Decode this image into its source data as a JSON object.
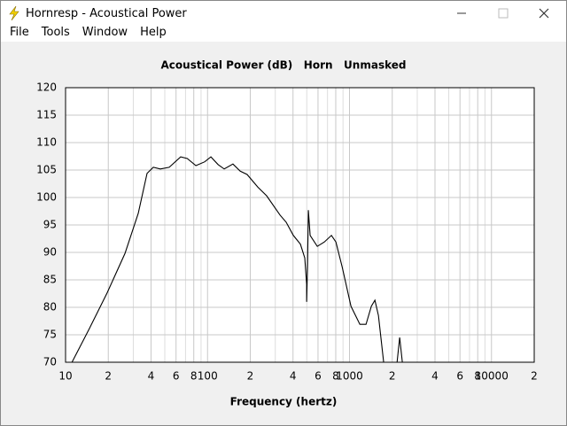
{
  "window": {
    "title": "Hornresp - Acoustical Power",
    "menu": [
      "File",
      "Tools",
      "Window",
      "Help"
    ]
  },
  "chart_data": {
    "type": "line",
    "title": "Acoustical Power (dB)   Horn   Unmasked",
    "xlabel": "Frequency (hertz)",
    "xlog": true,
    "grid": true,
    "xlim": [
      10,
      20000
    ],
    "ylim": [
      70,
      120
    ],
    "xticks": [
      10,
      {
        "value": 20,
        "label": "2"
      },
      {
        "value": 40,
        "label": "4"
      },
      {
        "value": 60,
        "label": "6"
      },
      {
        "value": 80,
        "label": "8"
      },
      100,
      {
        "value": 200,
        "label": "2"
      },
      {
        "value": 400,
        "label": "4"
      },
      {
        "value": 600,
        "label": "6"
      },
      {
        "value": 800,
        "label": "8"
      },
      1000,
      {
        "value": 2000,
        "label": "2"
      },
      {
        "value": 4000,
        "label": "4"
      },
      {
        "value": 6000,
        "label": "6"
      },
      {
        "value": 8000,
        "label": "8"
      },
      10000,
      {
        "value": 20000,
        "label": "2"
      }
    ],
    "xminor": [
      30,
      50,
      70,
      90,
      300,
      500,
      700,
      900,
      3000,
      5000,
      7000,
      9000
    ],
    "yticks": [
      70,
      75,
      80,
      85,
      90,
      95,
      100,
      105,
      110,
      115,
      120
    ],
    "series": [
      {
        "name": "Acoustical Power",
        "color": "#000000",
        "x": [
          11.1,
          14.7,
          19.6,
          26.2,
          32.5,
          37.5,
          41.5,
          46.5,
          53.7,
          64.7,
          72,
          82.8,
          95.5,
          105.6,
          118.6,
          131,
          151,
          170,
          190,
          226,
          261,
          324,
          358,
          402,
          451,
          484,
          499,
          499,
          506,
          513,
          528,
          593,
          665,
          746,
          802,
          887,
          1024,
          1183,
          1307,
          1425,
          1510,
          1599,
          1740,
          null,
          2163,
          2256,
          2356
        ],
        "values": [
          70,
          76.1,
          82.6,
          89.8,
          97.1,
          104.4,
          105.5,
          105.2,
          105.5,
          107.4,
          107.1,
          105.8,
          106.5,
          107.4,
          106,
          105.2,
          106.1,
          104.8,
          104.2,
          101.9,
          100.3,
          96.8,
          95.5,
          93.1,
          91.5,
          89,
          84.2,
          81,
          87.4,
          97.7,
          93.1,
          91.1,
          91.9,
          93.1,
          91.9,
          87.4,
          80.2,
          76.9,
          76.9,
          80.2,
          81.3,
          78.5,
          70,
          null,
          70,
          74.5,
          70
        ]
      }
    ]
  }
}
